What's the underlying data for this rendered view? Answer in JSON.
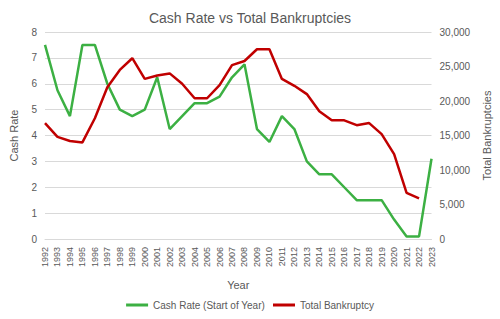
{
  "chart_data": {
    "type": "line",
    "title": "Cash Rate vs Total Bankruptcies",
    "x_label": "Year",
    "y_label": "Cash Rate",
    "y2_label": "Total Bankruptcies",
    "categories": [
      "1992",
      "1993",
      "1994",
      "1995",
      "1996",
      "1997",
      "1998",
      "1999",
      "2000",
      "2001",
      "2002",
      "2003",
      "2004",
      "2005",
      "2006",
      "2007",
      "2008",
      "2009",
      "2010",
      "2011",
      "2012",
      "2013",
      "2014",
      "2015",
      "2016",
      "2017",
      "2018",
      "2019",
      "2020",
      "2021",
      "2022",
      "2023"
    ],
    "series": [
      {
        "name": "Cash Rate (Start of Year)",
        "color": "#3cb043",
        "axis": "y",
        "values": [
          7.5,
          5.75,
          4.75,
          7.5,
          7.5,
          6.0,
          5.0,
          4.75,
          5.0,
          6.25,
          4.25,
          4.75,
          5.25,
          5.25,
          5.5,
          6.25,
          6.75,
          4.25,
          3.75,
          4.75,
          4.25,
          3.0,
          2.5,
          2.5,
          2.0,
          1.5,
          1.5,
          1.5,
          0.75,
          0.1,
          0.1,
          3.1
        ]
      },
      {
        "name": "Total Bankruptcy",
        "color": "#c00000",
        "axis": "y2",
        "values": [
          16800,
          14800,
          14200,
          14000,
          17500,
          22000,
          24500,
          26200,
          23200,
          23700,
          24000,
          22500,
          20400,
          20400,
          22300,
          25200,
          25800,
          27500,
          27500,
          23200,
          22200,
          21000,
          18500,
          17200,
          17200,
          16500,
          16800,
          15200,
          12300,
          6700,
          5900,
          null
        ]
      }
    ],
    "ylim": [
      0,
      8
    ],
    "yticks": [
      0,
      1,
      2,
      3,
      4,
      5,
      6,
      7,
      8
    ],
    "y2lim": [
      0,
      30000
    ],
    "y2ticks": [
      0,
      {
        "value": 5000,
        "label": "5,000"
      },
      {
        "value": 10000,
        "label": "10,000"
      },
      {
        "value": 15000,
        "label": "15,000"
      },
      {
        "value": 20000,
        "label": "20,000"
      },
      {
        "value": 25000,
        "label": "25,000"
      },
      {
        "value": 30000,
        "label": "30,000"
      }
    ],
    "grid": true,
    "legend": "bottom"
  }
}
